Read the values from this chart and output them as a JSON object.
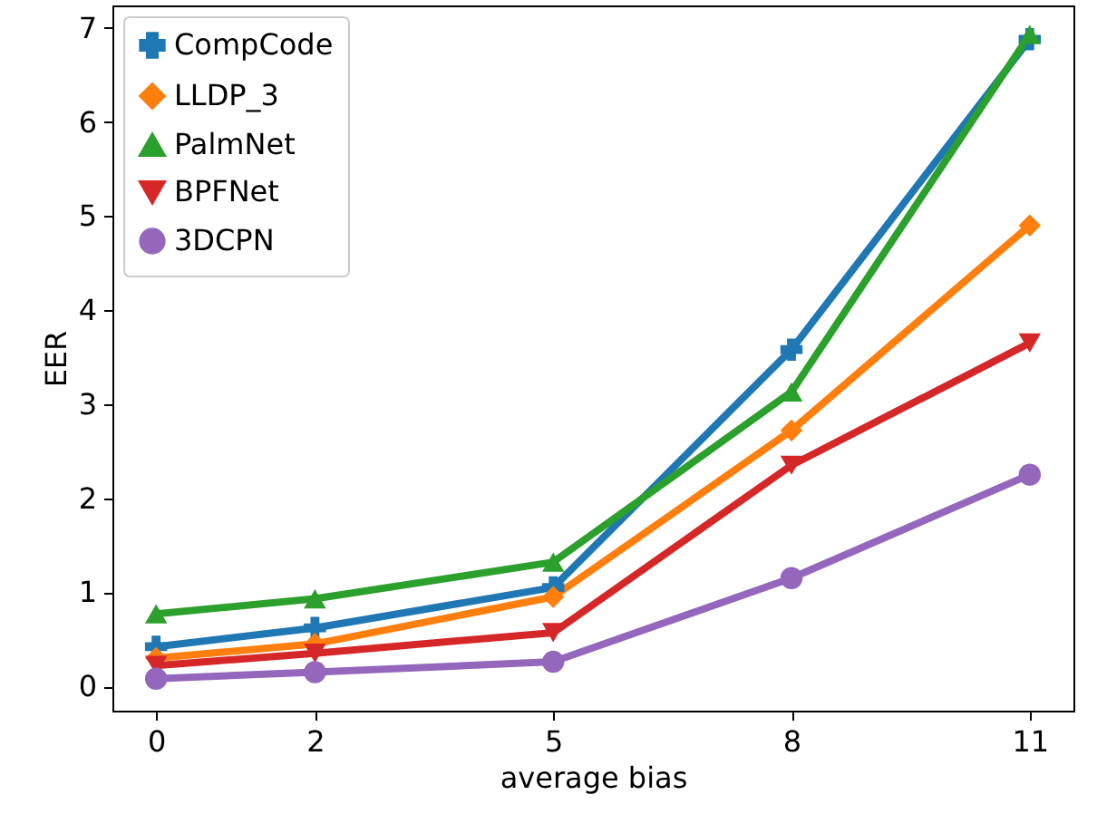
{
  "chart_data": {
    "type": "line",
    "xlabel": "average bias",
    "ylabel": "EER",
    "x": [
      0,
      2,
      5,
      8,
      11
    ],
    "series": [
      {
        "name": "CompCode",
        "color": "#1f77b4",
        "marker": "cross",
        "values": [
          0.42,
          0.62,
          1.05,
          3.58,
          6.88
        ]
      },
      {
        "name": "LLDP_3",
        "color": "#ff7f0e",
        "marker": "diamond",
        "values": [
          0.3,
          0.45,
          0.95,
          2.72,
          4.9
        ]
      },
      {
        "name": "PalmNet",
        "color": "#2ca02c",
        "marker": "triangle",
        "values": [
          0.77,
          0.93,
          1.32,
          3.13,
          6.93
        ]
      },
      {
        "name": "BPFNet",
        "color": "#d62728",
        "marker": "triangle-down",
        "values": [
          0.22,
          0.35,
          0.57,
          2.35,
          3.65
        ]
      },
      {
        "name": "3DCPN",
        "color": "#9467bd",
        "marker": "circle",
        "values": [
          0.08,
          0.15,
          0.26,
          1.15,
          2.25
        ]
      }
    ],
    "xlim": [
      -0.55,
      11.55
    ],
    "ylim": [
      -0.26,
      7.24
    ],
    "xticks": [
      0,
      2,
      5,
      8,
      11
    ],
    "yticks": [
      0,
      1,
      2,
      3,
      4,
      5,
      6,
      7
    ],
    "legend": "top left",
    "line_style": "solid"
  }
}
